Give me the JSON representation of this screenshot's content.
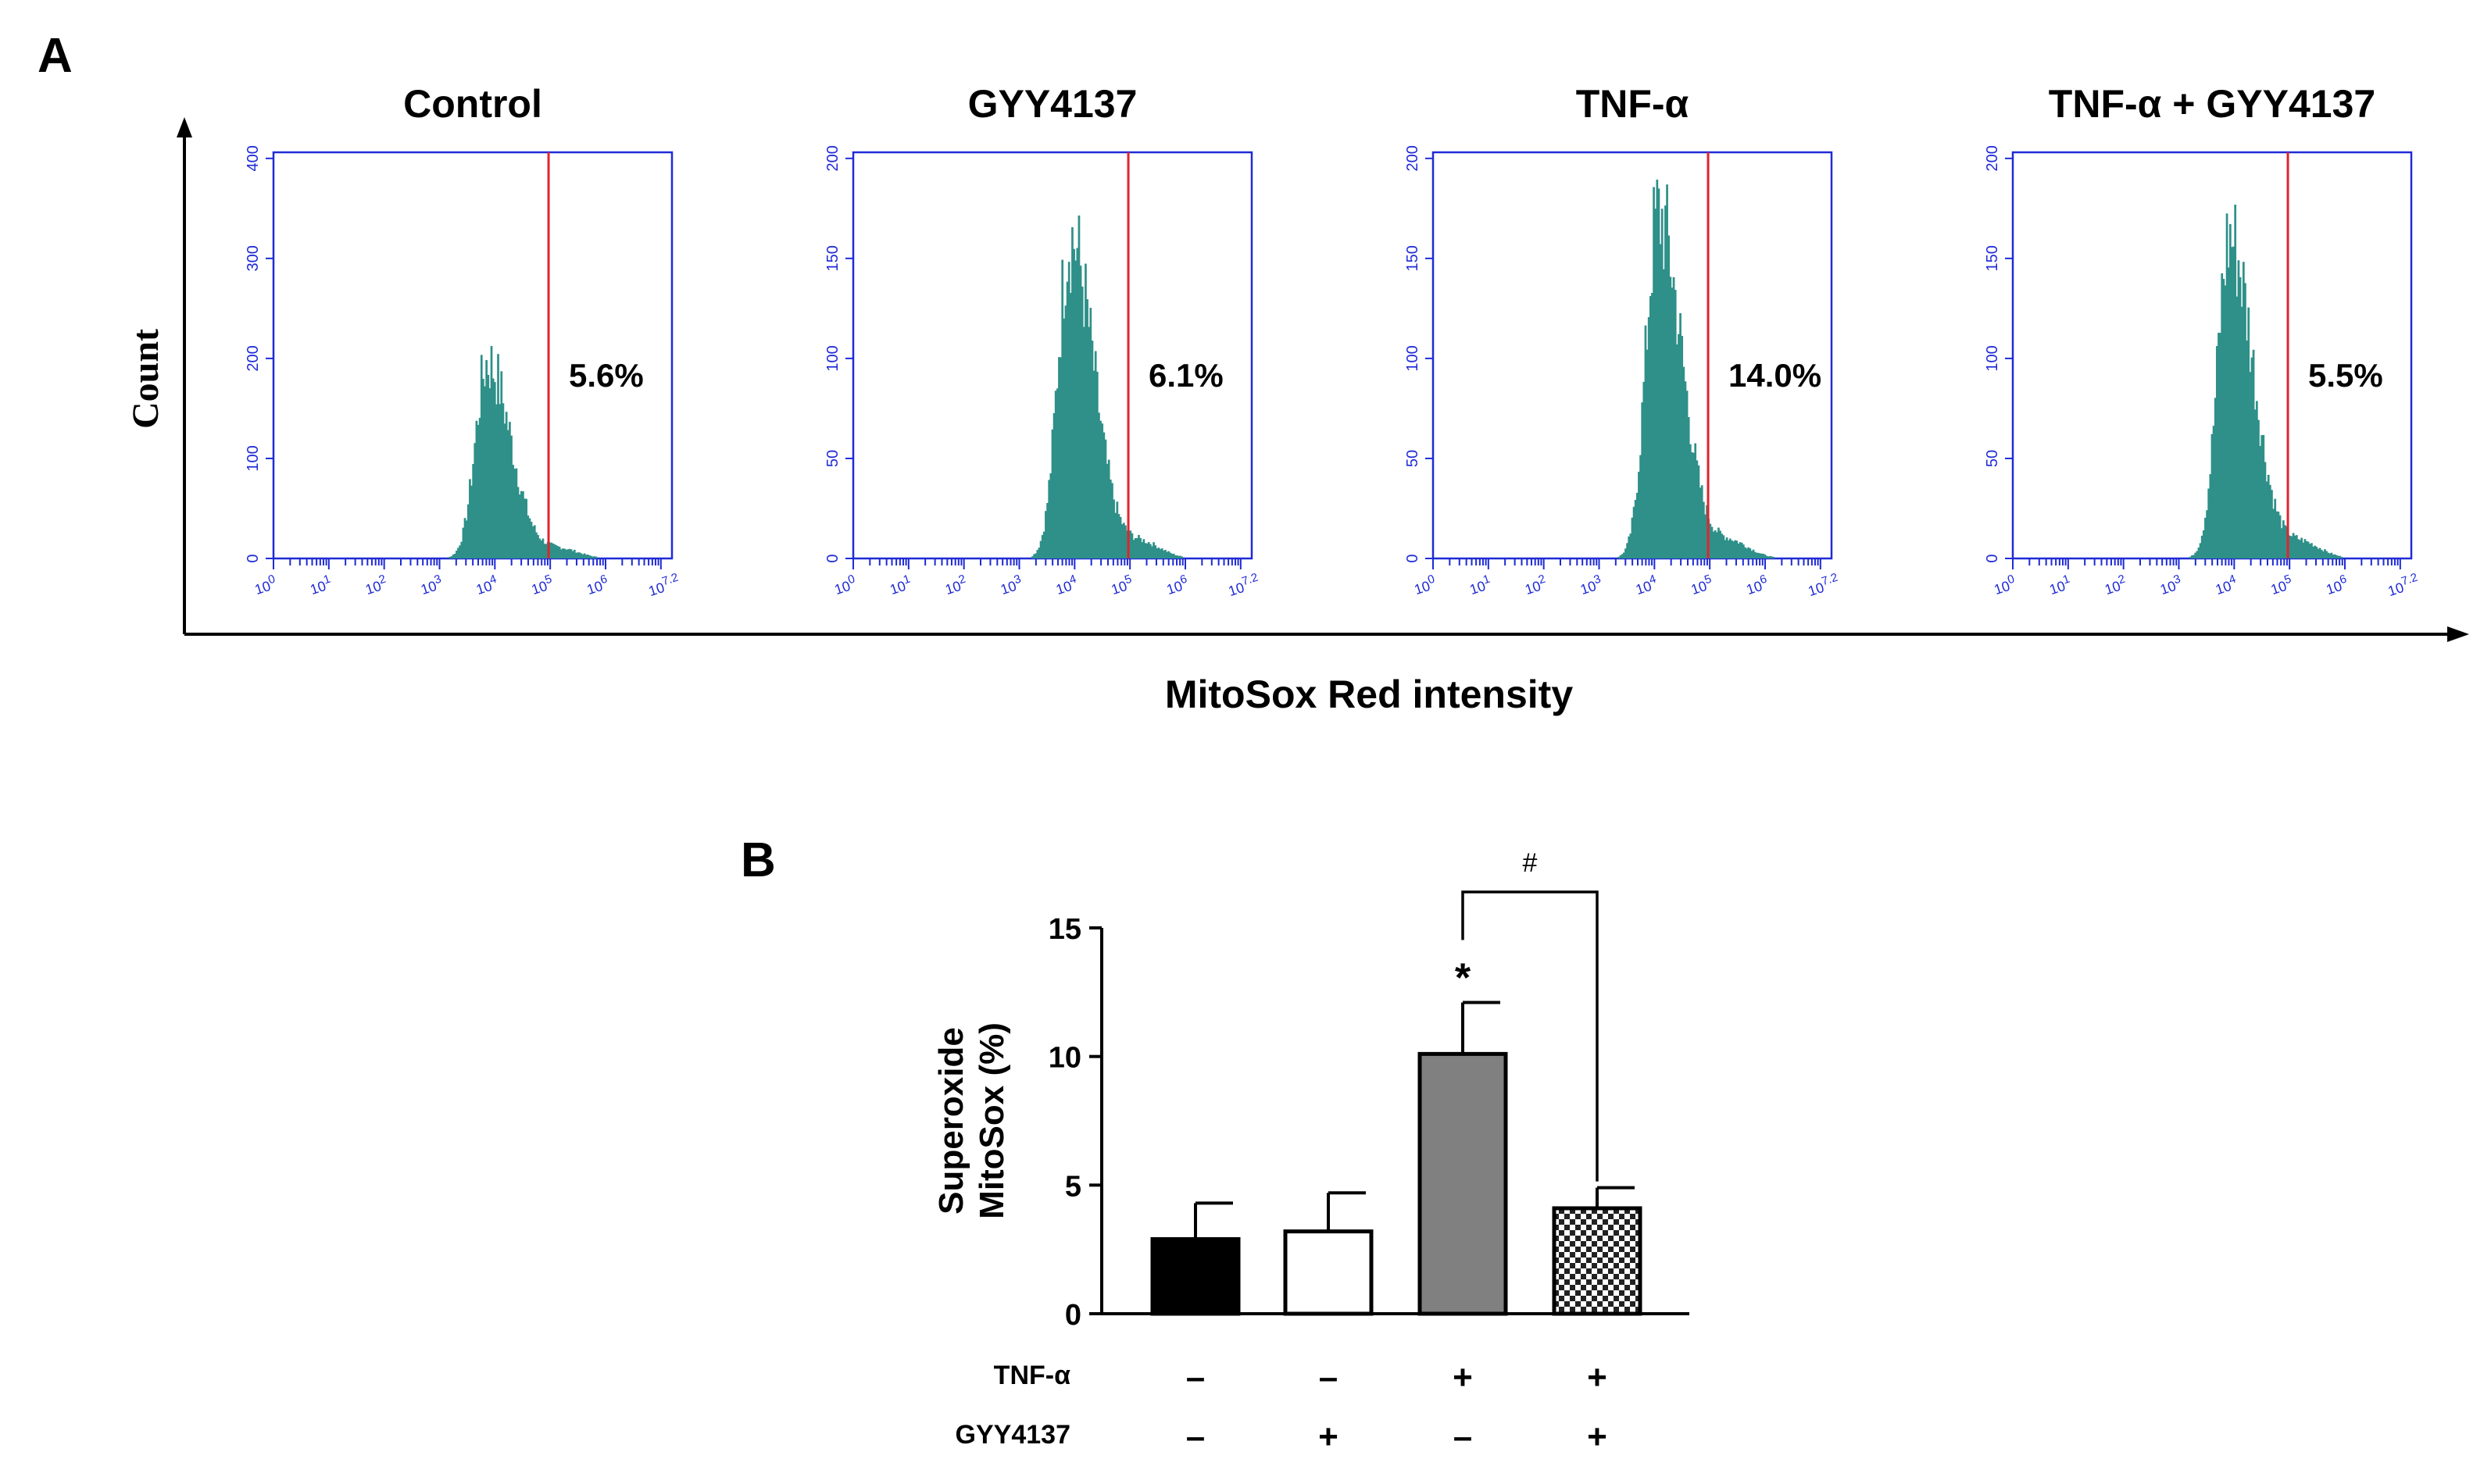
{
  "chart_data": [
    {
      "panel": "A",
      "type": "histogram",
      "shared_xlabel": "MitoSox Red intensity",
      "shared_ylabel": "Count",
      "x_ticks": [
        "10^0",
        "10^1",
        "10^2",
        "10^3",
        "10^4",
        "10^5",
        "10^6",
        "10^7.2"
      ],
      "x_tick_powers": [
        "0",
        "1",
        "2",
        "3",
        "4",
        "5",
        "6",
        "7.2"
      ],
      "x_log_range": [
        0,
        7.2
      ],
      "gate_log10": 4.97,
      "histogram_color": "#2e9088",
      "gate_color": "#e0242f",
      "axis_color": "#1f2bd6",
      "plots": [
        {
          "title": "Control",
          "percent_label": "5.6%",
          "ylim": [
            0,
            400
          ],
          "y_ticks": [
            "0",
            "100",
            "200",
            "300",
            "400"
          ],
          "peak_log10": 3.85,
          "peak_count": 205
        },
        {
          "title": "GYY4137",
          "percent_label": "6.1%",
          "ylim": [
            0,
            200
          ],
          "y_ticks": [
            "0",
            "50",
            "100",
            "150",
            "200"
          ],
          "peak_log10": 3.9,
          "peak_count": 168
        },
        {
          "title": "TNF-α",
          "percent_label": "14.0%",
          "ylim": [
            0,
            200
          ],
          "y_ticks": [
            "0",
            "50",
            "100",
            "150",
            "200"
          ],
          "peak_log10": 4.05,
          "peak_count": 180
        },
        {
          "title": "TNF-α + GYY4137",
          "percent_label": "5.5%",
          "ylim": [
            0,
            200
          ],
          "y_ticks": [
            "0",
            "50",
            "100",
            "150",
            "200"
          ],
          "peak_log10": 3.9,
          "peak_count": 168
        }
      ]
    },
    {
      "panel": "B",
      "type": "bar",
      "ylabel_lines": [
        "Superoxide",
        "MitoSox (%)"
      ],
      "ylim": [
        0,
        15
      ],
      "y_ticks": [
        "0",
        "5",
        "10",
        "15"
      ],
      "values": [
        2.9,
        3.2,
        10.1,
        4.1
      ],
      "errors": [
        1.4,
        1.5,
        2.0,
        0.8
      ],
      "bar_styles": [
        "black",
        "white",
        "gray",
        "checker"
      ],
      "treatment_rows": [
        {
          "label": "TNF-α",
          "signs": [
            "–",
            "–",
            "+",
            "+"
          ]
        },
        {
          "label": "GYY4137",
          "signs": [
            "–",
            "+",
            "–",
            "+"
          ]
        }
      ],
      "annotations": {
        "star": "*",
        "hash": "#"
      }
    }
  ]
}
